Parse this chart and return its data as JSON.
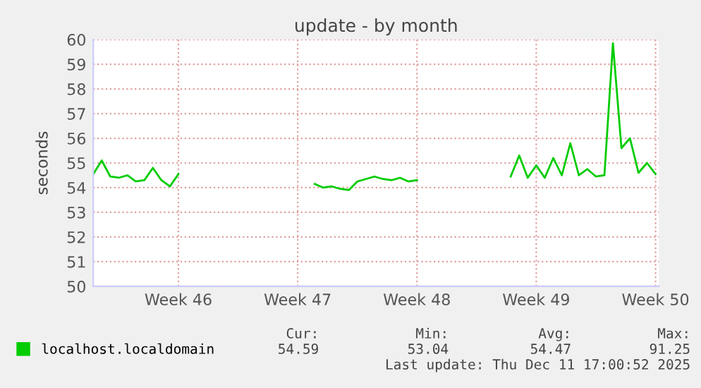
{
  "chart_data": {
    "type": "line",
    "title": "update - by month",
    "ylabel": "seconds",
    "categories": [
      null,
      null,
      null,
      null,
      null,
      null,
      null,
      null,
      null,
      null,
      "Week 46",
      null,
      null,
      null,
      null,
      null,
      null,
      null,
      null,
      null,
      null,
      null,
      null,
      null,
      "Week 47",
      null,
      null,
      null,
      null,
      null,
      null,
      null,
      null,
      null,
      null,
      null,
      null,
      null,
      "Week 48",
      null,
      null,
      null,
      null,
      null,
      null,
      null,
      null,
      null,
      null,
      null,
      null,
      null,
      "Week 49",
      null,
      null,
      null,
      null,
      null,
      null,
      null,
      null,
      null,
      null,
      null,
      null,
      null,
      "Week 50"
    ],
    "series": [
      {
        "name": "localhost.localdomain",
        "color": "#00cc00",
        "values": [
          54.55,
          55.1,
          54.45,
          54.4,
          54.5,
          54.25,
          54.3,
          54.8,
          54.3,
          54.05,
          54.55,
          null,
          null,
          null,
          null,
          null,
          null,
          null,
          null,
          null,
          null,
          null,
          null,
          null,
          null,
          null,
          54.15,
          54.0,
          54.05,
          53.95,
          53.9,
          54.25,
          54.35,
          54.45,
          54.35,
          54.3,
          54.4,
          54.25,
          54.3,
          null,
          null,
          null,
          null,
          null,
          null,
          null,
          null,
          null,
          null,
          54.45,
          55.3,
          54.4,
          54.9,
          54.4,
          55.2,
          54.5,
          55.8,
          54.5,
          54.75,
          54.45,
          54.5,
          59.85,
          55.6,
          56.0,
          54.6,
          55.0,
          54.55
        ]
      }
    ],
    "ylim": [
      50,
      60
    ],
    "yticks": [
      50,
      51,
      52,
      53,
      54,
      55,
      56,
      57,
      58,
      59,
      60
    ],
    "grid": true,
    "legend": "bottom",
    "line_style": "solid",
    "marker": "none",
    "annotations": [
      "Cur:",
      "54.59",
      "Min:",
      "53.04",
      "Avg:",
      "54.47",
      "Max:",
      "91.25",
      "Last update: Thu Dec 11 17:00:52 2025"
    ]
  }
}
